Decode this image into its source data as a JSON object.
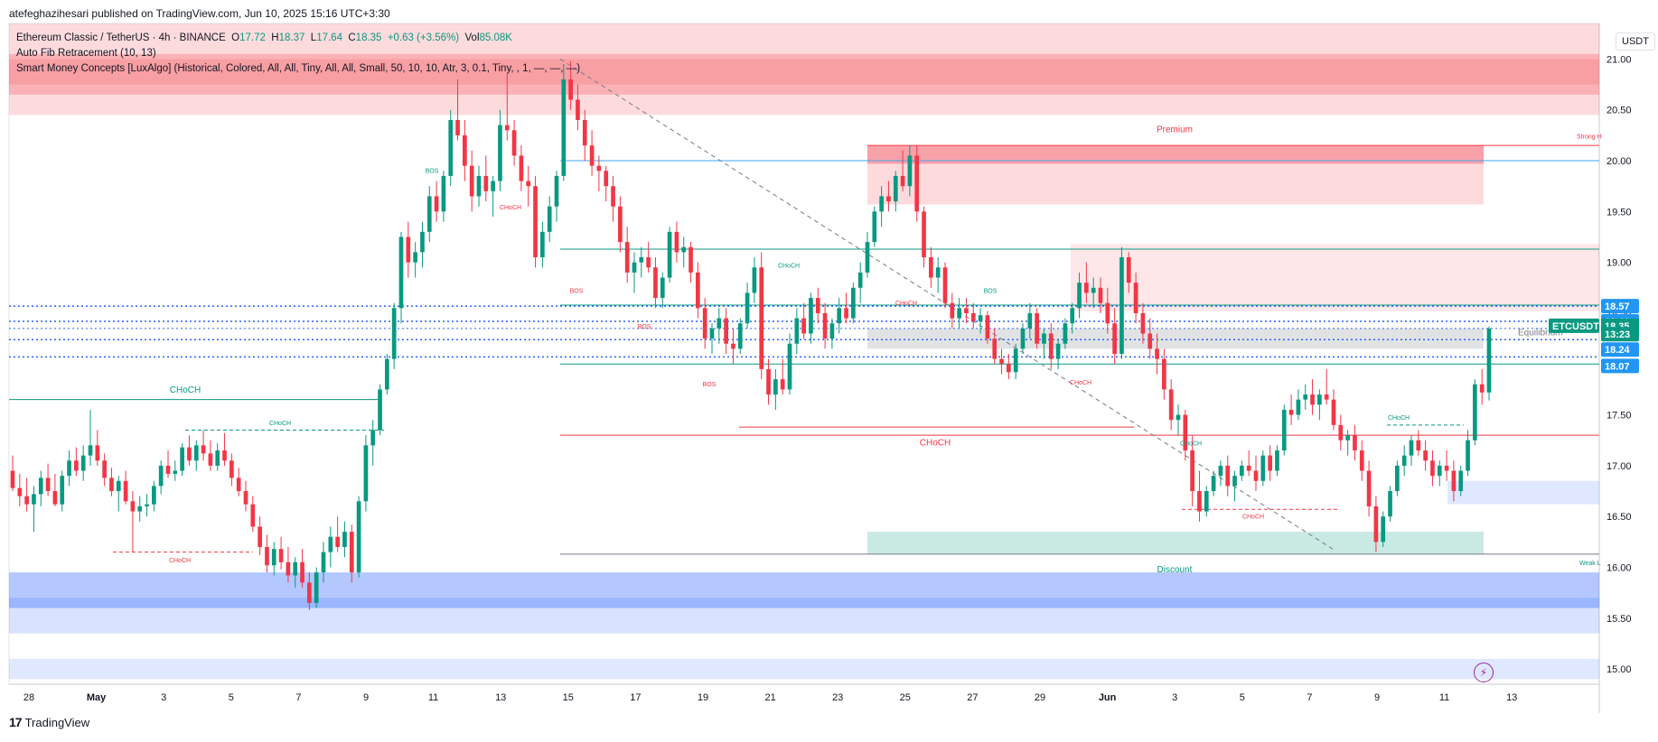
{
  "header": {
    "published": "atefeghazihesari published on TradingView.com, Jun 10, 2025 15:16 UTC+3:30"
  },
  "legend": {
    "symbol": "Ethereum Classic / TetherUS · 4h · BINANCE",
    "o_label": "O",
    "o_value": "17.72",
    "h_label": "H",
    "h_value": "18.37",
    "l_label": "L",
    "l_value": "17.64",
    "c_label": "C",
    "c_value": "18.35",
    "change": "+0.63 (+3.56%)",
    "vol_label": "Vol",
    "vol_value": "85.08K",
    "indicator1": "Auto Fib Retracement (10, 13)",
    "indicator2": "Smart Money Concepts [LuxAlgo] (Historical, Colored, All, All, Tiny, All, All, Small, 50, 10, 10, Atr, 3, 0.1, Tiny, , 1, —, —, —)"
  },
  "currency": "USDT",
  "footer": {
    "brand": "TradingView",
    "logo": "17"
  },
  "icons": {
    "alert": "lightning-alert-icon"
  },
  "colors": {
    "up": "#089981",
    "down": "#f23645",
    "premium": "#f23645",
    "discount": "#089981",
    "demand": "#2962ff",
    "dotted": "#2962ff",
    "symbol_tag": "#089981",
    "price_tag": "#2196f3"
  },
  "chart_data": {
    "type": "candlestick",
    "symbol": "ETCUSDT",
    "timeframe": "4h",
    "ylim": [
      14.85,
      21.35
    ],
    "price_ticks": [
      "21.00",
      "20.50",
      "20.00",
      "19.50",
      "19.00",
      "18.50",
      "18.00",
      "17.50",
      "17.00",
      "16.50",
      "16.00",
      "15.50",
      "15.00"
    ],
    "date_ticks": [
      "28",
      "May",
      "3",
      "5",
      "7",
      "9",
      "11",
      "13",
      "15",
      "17",
      "19",
      "21",
      "23",
      "25",
      "27",
      "29",
      "Jun",
      "3",
      "5",
      "7",
      "9",
      "11",
      "13"
    ],
    "candles": [
      [
        16.95,
        17.1,
        16.75,
        16.78
      ],
      [
        16.78,
        16.92,
        16.6,
        16.7
      ],
      [
        16.7,
        16.88,
        16.55,
        16.62
      ],
      [
        16.62,
        16.8,
        16.35,
        16.72
      ],
      [
        16.72,
        16.95,
        16.6,
        16.88
      ],
      [
        16.88,
        17.02,
        16.7,
        16.75
      ],
      [
        16.75,
        16.92,
        16.6,
        16.62
      ],
      [
        16.62,
        16.95,
        16.55,
        16.9
      ],
      [
        16.9,
        17.15,
        16.8,
        17.05
      ],
      [
        17.05,
        17.18,
        16.9,
        16.95
      ],
      [
        16.95,
        17.2,
        16.85,
        17.1
      ],
      [
        17.1,
        17.55,
        17.0,
        17.2
      ],
      [
        17.2,
        17.35,
        17.0,
        17.05
      ],
      [
        17.05,
        17.12,
        16.8,
        16.88
      ],
      [
        16.88,
        16.98,
        16.7,
        16.75
      ],
      [
        16.75,
        16.9,
        16.55,
        16.85
      ],
      [
        16.85,
        16.95,
        16.62,
        16.65
      ],
      [
        16.65,
        16.75,
        16.15,
        16.55
      ],
      [
        16.55,
        16.7,
        16.45,
        16.6
      ],
      [
        16.6,
        16.72,
        16.5,
        16.62
      ],
      [
        16.62,
        16.85,
        16.55,
        16.8
      ],
      [
        16.8,
        17.05,
        16.72,
        17.0
      ],
      [
        17.0,
        17.15,
        16.88,
        16.92
      ],
      [
        16.92,
        17.05,
        16.85,
        16.95
      ],
      [
        16.95,
        17.22,
        16.9,
        17.18
      ],
      [
        17.18,
        17.3,
        17.0,
        17.05
      ],
      [
        17.05,
        17.25,
        16.95,
        17.2
      ],
      [
        17.2,
        17.35,
        17.05,
        17.12
      ],
      [
        17.12,
        17.25,
        16.95,
        17.0
      ],
      [
        17.0,
        17.22,
        16.95,
        17.15
      ],
      [
        17.15,
        17.32,
        17.0,
        17.05
      ],
      [
        17.05,
        17.12,
        16.8,
        16.88
      ],
      [
        16.88,
        16.98,
        16.7,
        16.75
      ],
      [
        16.75,
        16.85,
        16.55,
        16.62
      ],
      [
        16.62,
        16.7,
        16.35,
        16.4
      ],
      [
        16.4,
        16.5,
        16.12,
        16.2
      ],
      [
        16.2,
        16.32,
        15.95,
        16.02
      ],
      [
        16.02,
        16.25,
        15.92,
        16.18
      ],
      [
        16.18,
        16.3,
        15.98,
        16.05
      ],
      [
        16.05,
        16.2,
        15.85,
        15.92
      ],
      [
        15.92,
        16.1,
        15.8,
        16.05
      ],
      [
        16.05,
        16.18,
        15.8,
        15.85
      ],
      [
        15.85,
        15.95,
        15.58,
        15.65
      ],
      [
        15.65,
        16.0,
        15.6,
        15.95
      ],
      [
        15.95,
        16.25,
        15.85,
        16.15
      ],
      [
        16.15,
        16.4,
        16.0,
        16.3
      ],
      [
        16.3,
        16.5,
        16.15,
        16.2
      ],
      [
        16.2,
        16.45,
        16.1,
        16.35
      ],
      [
        16.35,
        16.42,
        15.85,
        15.95
      ],
      [
        15.95,
        16.7,
        15.9,
        16.65
      ],
      [
        16.65,
        17.3,
        16.55,
        17.2
      ],
      [
        17.2,
        17.45,
        17.0,
        17.35
      ],
      [
        17.35,
        17.8,
        17.3,
        17.75
      ],
      [
        17.75,
        18.1,
        17.7,
        18.05
      ],
      [
        18.05,
        18.6,
        17.95,
        18.55
      ],
      [
        18.55,
        19.3,
        18.4,
        19.25
      ],
      [
        19.25,
        19.4,
        18.85,
        19.0
      ],
      [
        19.0,
        19.2,
        18.85,
        19.1
      ],
      [
        19.1,
        19.4,
        18.95,
        19.3
      ],
      [
        19.3,
        19.75,
        19.2,
        19.65
      ],
      [
        19.65,
        19.8,
        19.4,
        19.5
      ],
      [
        19.5,
        19.9,
        19.4,
        19.85
      ],
      [
        19.85,
        20.5,
        19.75,
        20.4
      ],
      [
        20.4,
        20.8,
        20.2,
        20.25
      ],
      [
        20.25,
        20.4,
        19.8,
        19.95
      ],
      [
        19.95,
        20.1,
        19.5,
        19.65
      ],
      [
        19.65,
        19.95,
        19.55,
        19.85
      ],
      [
        19.85,
        20.05,
        19.6,
        19.7
      ],
      [
        19.7,
        19.85,
        19.45,
        19.8
      ],
      [
        19.8,
        20.5,
        19.7,
        20.35
      ],
      [
        20.35,
        20.85,
        20.2,
        20.3
      ],
      [
        20.3,
        20.4,
        19.95,
        20.05
      ],
      [
        20.05,
        20.15,
        19.7,
        19.8
      ],
      [
        19.8,
        19.95,
        19.55,
        19.75
      ],
      [
        19.75,
        19.85,
        18.95,
        19.05
      ],
      [
        19.05,
        19.4,
        18.95,
        19.3
      ],
      [
        19.3,
        19.65,
        19.2,
        19.55
      ],
      [
        19.55,
        19.9,
        19.4,
        19.85
      ],
      [
        19.85,
        20.95,
        19.8,
        20.8
      ],
      [
        20.8,
        20.98,
        20.5,
        20.6
      ],
      [
        20.6,
        20.75,
        20.3,
        20.4
      ],
      [
        20.4,
        20.5,
        20.0,
        20.15
      ],
      [
        20.15,
        20.3,
        19.85,
        19.95
      ],
      [
        19.95,
        20.05,
        19.7,
        19.9
      ],
      [
        19.9,
        19.95,
        19.6,
        19.75
      ],
      [
        19.75,
        19.85,
        19.4,
        19.55
      ],
      [
        19.55,
        19.65,
        19.1,
        19.2
      ],
      [
        19.2,
        19.35,
        18.8,
        18.9
      ],
      [
        18.9,
        19.1,
        18.7,
        19.0
      ],
      [
        19.0,
        19.15,
        18.85,
        19.05
      ],
      [
        19.05,
        19.2,
        18.9,
        18.95
      ],
      [
        18.95,
        19.05,
        18.55,
        18.65
      ],
      [
        18.65,
        18.9,
        18.55,
        18.85
      ],
      [
        18.85,
        19.35,
        18.8,
        19.3
      ],
      [
        19.3,
        19.4,
        19.0,
        19.1
      ],
      [
        19.1,
        19.25,
        18.95,
        19.15
      ],
      [
        19.15,
        19.2,
        18.8,
        18.9
      ],
      [
        18.9,
        19.0,
        18.45,
        18.55
      ],
      [
        18.55,
        18.65,
        18.15,
        18.25
      ],
      [
        18.25,
        18.4,
        18.1,
        18.35
      ],
      [
        18.35,
        18.55,
        18.2,
        18.45
      ],
      [
        18.45,
        18.55,
        18.1,
        18.2
      ],
      [
        18.2,
        18.35,
        18.0,
        18.15
      ],
      [
        18.15,
        18.45,
        18.1,
        18.4
      ],
      [
        18.4,
        18.8,
        18.35,
        18.7
      ],
      [
        18.7,
        19.05,
        18.6,
        18.95
      ],
      [
        18.95,
        19.1,
        17.85,
        17.95
      ],
      [
        17.95,
        18.05,
        17.6,
        17.7
      ],
      [
        17.7,
        17.95,
        17.55,
        17.85
      ],
      [
        17.85,
        18.05,
        17.7,
        17.75
      ],
      [
        17.75,
        18.3,
        17.7,
        18.2
      ],
      [
        18.2,
        18.55,
        18.1,
        18.45
      ],
      [
        18.45,
        18.6,
        18.25,
        18.3
      ],
      [
        18.3,
        18.7,
        18.2,
        18.65
      ],
      [
        18.65,
        18.75,
        18.4,
        18.5
      ],
      [
        18.5,
        18.6,
        18.15,
        18.25
      ],
      [
        18.25,
        18.45,
        18.15,
        18.4
      ],
      [
        18.4,
        18.65,
        18.3,
        18.55
      ],
      [
        18.55,
        18.7,
        18.4,
        18.45
      ],
      [
        18.45,
        18.8,
        18.4,
        18.75
      ],
      [
        18.75,
        19.0,
        18.6,
        18.9
      ],
      [
        18.9,
        19.3,
        18.85,
        19.2
      ],
      [
        19.2,
        19.55,
        19.15,
        19.5
      ],
      [
        19.5,
        19.75,
        19.35,
        19.65
      ],
      [
        19.65,
        19.8,
        19.5,
        19.6
      ],
      [
        19.6,
        19.9,
        19.5,
        19.85
      ],
      [
        19.85,
        20.1,
        19.7,
        19.75
      ],
      [
        19.75,
        20.15,
        19.65,
        20.05
      ],
      [
        20.05,
        20.15,
        19.4,
        19.5
      ],
      [
        19.5,
        19.55,
        18.95,
        19.05
      ],
      [
        19.05,
        19.15,
        18.75,
        18.85
      ],
      [
        18.85,
        19.05,
        18.7,
        18.95
      ],
      [
        18.95,
        19.0,
        18.55,
        18.6
      ],
      [
        18.6,
        18.7,
        18.35,
        18.45
      ],
      [
        18.45,
        18.65,
        18.35,
        18.55
      ],
      [
        18.55,
        18.65,
        18.4,
        18.5
      ],
      [
        18.5,
        18.6,
        18.35,
        18.42
      ],
      [
        18.42,
        18.55,
        18.3,
        18.48
      ],
      [
        18.48,
        18.52,
        18.2,
        18.25
      ],
      [
        18.25,
        18.35,
        18.0,
        18.05
      ],
      [
        18.05,
        18.15,
        17.9,
        18.0
      ],
      [
        18.0,
        18.1,
        17.85,
        17.92
      ],
      [
        17.92,
        18.2,
        17.85,
        18.15
      ],
      [
        18.15,
        18.4,
        18.1,
        18.35
      ],
      [
        18.35,
        18.6,
        18.25,
        18.5
      ],
      [
        18.5,
        18.55,
        18.15,
        18.2
      ],
      [
        18.2,
        18.35,
        18.05,
        18.3
      ],
      [
        18.3,
        18.4,
        17.95,
        18.05
      ],
      [
        18.05,
        18.25,
        17.95,
        18.2
      ],
      [
        18.2,
        18.45,
        18.15,
        18.4
      ],
      [
        18.4,
        18.6,
        18.3,
        18.55
      ],
      [
        18.55,
        18.9,
        18.45,
        18.8
      ],
      [
        18.8,
        19.0,
        18.6,
        18.7
      ],
      [
        18.7,
        18.85,
        18.55,
        18.75
      ],
      [
        18.75,
        18.85,
        18.5,
        18.6
      ],
      [
        18.6,
        18.75,
        18.3,
        18.4
      ],
      [
        18.4,
        18.55,
        18.0,
        18.1
      ],
      [
        18.1,
        19.15,
        18.05,
        19.05
      ],
      [
        19.05,
        19.1,
        18.7,
        18.8
      ],
      [
        18.8,
        18.9,
        18.4,
        18.5
      ],
      [
        18.5,
        18.6,
        18.2,
        18.3
      ],
      [
        18.3,
        18.45,
        18.05,
        18.15
      ],
      [
        18.15,
        18.3,
        17.9,
        18.05
      ],
      [
        18.05,
        18.15,
        17.65,
        17.75
      ],
      [
        17.75,
        17.85,
        17.35,
        17.45
      ],
      [
        17.45,
        17.6,
        17.3,
        17.5
      ],
      [
        17.5,
        17.55,
        17.05,
        17.15
      ],
      [
        17.15,
        17.3,
        16.6,
        16.75
      ],
      [
        16.75,
        16.95,
        16.45,
        16.55
      ],
      [
        16.55,
        16.8,
        16.5,
        16.75
      ],
      [
        16.75,
        16.95,
        16.7,
        16.9
      ],
      [
        16.9,
        17.05,
        16.8,
        17.0
      ],
      [
        17.0,
        17.1,
        16.7,
        16.8
      ],
      [
        16.8,
        16.95,
        16.65,
        16.9
      ],
      [
        16.9,
        17.05,
        16.85,
        17.0
      ],
      [
        17.0,
        17.15,
        16.9,
        16.95
      ],
      [
        16.95,
        17.1,
        16.75,
        16.85
      ],
      [
        16.85,
        17.15,
        16.8,
        17.1
      ],
      [
        17.1,
        17.2,
        16.85,
        16.95
      ],
      [
        16.95,
        17.2,
        16.9,
        17.15
      ],
      [
        17.15,
        17.6,
        17.1,
        17.55
      ],
      [
        17.55,
        17.7,
        17.4,
        17.5
      ],
      [
        17.5,
        17.75,
        17.45,
        17.65
      ],
      [
        17.65,
        17.8,
        17.55,
        17.7
      ],
      [
        17.7,
        17.85,
        17.5,
        17.6
      ],
      [
        17.6,
        17.75,
        17.45,
        17.7
      ],
      [
        17.7,
        17.95,
        17.6,
        17.65
      ],
      [
        17.65,
        17.75,
        17.35,
        17.4
      ],
      [
        17.4,
        17.5,
        17.15,
        17.25
      ],
      [
        17.25,
        17.35,
        17.1,
        17.3
      ],
      [
        17.3,
        17.4,
        17.05,
        17.15
      ],
      [
        17.15,
        17.25,
        16.85,
        16.95
      ],
      [
        16.95,
        17.05,
        16.5,
        16.6
      ],
      [
        16.6,
        16.7,
        16.15,
        16.25
      ],
      [
        16.25,
        16.55,
        16.2,
        16.5
      ],
      [
        16.5,
        16.8,
        16.45,
        16.75
      ],
      [
        16.75,
        17.05,
        16.7,
        17.0
      ],
      [
        17.0,
        17.2,
        16.9,
        17.1
      ],
      [
        17.1,
        17.3,
        17.0,
        17.25
      ],
      [
        17.25,
        17.35,
        17.1,
        17.15
      ],
      [
        17.15,
        17.25,
        16.95,
        17.05
      ],
      [
        17.05,
        17.15,
        16.8,
        16.9
      ],
      [
        16.9,
        17.05,
        16.8,
        17.0
      ],
      [
        17.0,
        17.15,
        16.85,
        16.95
      ],
      [
        16.95,
        17.05,
        16.65,
        16.75
      ],
      [
        16.75,
        17.0,
        16.7,
        16.95
      ],
      [
        16.95,
        17.35,
        16.9,
        17.25
      ],
      [
        17.25,
        17.85,
        17.2,
        17.8
      ],
      [
        17.8,
        17.95,
        17.6,
        17.72
      ],
      [
        17.72,
        18.37,
        17.64,
        18.35
      ]
    ],
    "right_labels": {
      "p1": "18.57",
      "p2": "18.42",
      "symbol": "ETCUSDT",
      "p3": "18.35",
      "timer": "13:23",
      "p4": "18.24",
      "p5": "18.07"
    },
    "zones": {
      "premium": "Premium",
      "equilibrium": "Equilibrium",
      "discount": "Discount",
      "strong_high": "Strong H",
      "weak_low": "Weak L"
    },
    "structure_labels": [
      "BOS",
      "CHoCH",
      "BOS",
      "CHoCH",
      "BOS",
      "BOS",
      "CHoCH",
      "BOS",
      "CHoCH",
      "CHoCH",
      "CHoCH",
      "CHoCH",
      "CHoCH",
      "CHoCH",
      "CHoCH",
      "CHoCH"
    ]
  }
}
